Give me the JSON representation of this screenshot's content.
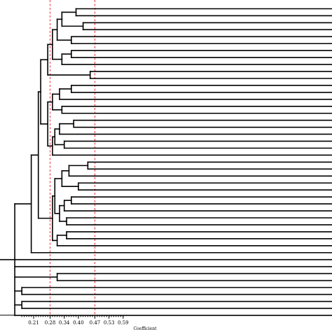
{
  "chart_data": {
    "type": "dendrogram",
    "orientation": "horizontal",
    "xlabel": "Coefficient",
    "xlim": [
      0.15,
      0.6
    ],
    "xticks": [
      0.21,
      0.28,
      0.34,
      0.4,
      0.47,
      0.53,
      0.59
    ],
    "xtick_labels": [
      "0.21",
      "0.28",
      "0.34",
      "0.40",
      "0.47",
      "0.53",
      "0.59"
    ],
    "cutoff_lines": [
      0.28,
      0.47
    ],
    "leaf_count": 45,
    "merge_tree": {
      "h": 0.13,
      "children": [
        {
          "h": 0.2,
          "children": [
            {
              "h": 0.23,
              "children": [
                {
                  "h": 0.24,
                  "children": [
                    {
                      "h": 0.27,
                      "children": [
                        {
                          "h": 0.29,
                          "children": [
                            {
                              "h": 0.31,
                              "children": [
                                {
                                  "h": 0.33,
                                  "children": [
                                    {
                                      "h": 0.39,
                                      "children": [
                                        {
                                          "leaf": 1
                                        },
                                        {
                                          "leaf": 2
                                        }
                                      ]
                                    },
                                    {
                                      "h": 0.42,
                                      "children": [
                                        {
                                          "leaf": 3
                                        },
                                        {
                                          "leaf": 4
                                        }
                                      ]
                                    }
                                  ]
                                },
                                {
                                  "h": 0.37,
                                  "children": [
                                    {
                                      "leaf": 5
                                    },
                                    {
                                      "leaf": 6
                                    }
                                  ]
                                }
                              ]
                            },
                            {
                              "h": 0.33,
                              "children": [
                                {
                                  "h": 0.37,
                                  "children": [
                                    {
                                      "leaf": 7
                                    },
                                    {
                                      "leaf": 8
                                    }
                                  ]
                                },
                                {
                                  "leaf": 9
                                }
                              ]
                            }
                          ]
                        },
                        {
                          "h": 0.45,
                          "children": [
                            {
                              "leaf": 10
                            },
                            {
                              "leaf": 11
                            }
                          ]
                        }
                      ]
                    },
                    {
                      "h": 0.27,
                      "children": [
                        {
                          "h": 0.29,
                          "children": [
                            {
                              "h": 0.32,
                              "children": [
                                {
                                  "h": 0.37,
                                  "children": [
                                    {
                                      "leaf": 12
                                    },
                                    {
                                      "leaf": 13
                                    }
                                  ]
                                },
                                {
                                  "leaf": 14
                                }
                              ]
                            },
                            {
                              "h": 0.33,
                              "children": [
                                {
                                  "leaf": 15
                                },
                                {
                                  "leaf": 16
                                }
                              ]
                            }
                          ]
                        },
                        {
                          "h": 0.29,
                          "children": [
                            {
                              "h": 0.3,
                              "children": [
                                {
                                  "h": 0.32,
                                  "children": [
                                    {
                                      "h": 0.38,
                                      "children": [
                                        {
                                          "leaf": 17
                                        },
                                        {
                                          "leaf": 18
                                        }
                                      ]
                                    },
                                    {
                                      "leaf": 19
                                    }
                                  ]
                                },
                                {
                                  "h": 0.34,
                                  "children": [
                                    {
                                      "leaf": 20
                                    },
                                    {
                                      "leaf": 21
                                    }
                                  ]
                                }
                              ]
                            },
                            {
                              "leaf": 22
                            }
                          ]
                        }
                      ]
                    }
                  ]
                },
                {
                  "h": 0.29,
                  "children": [
                    {
                      "h": 0.3,
                      "children": [
                        {
                          "h": 0.33,
                          "children": [
                            {
                              "h": 0.36,
                              "children": [
                                {
                                  "h": 0.44,
                                  "children": [
                                    {
                                      "leaf": 23
                                    },
                                    {
                                      "leaf": 24
                                    }
                                  ]
                                },
                                {
                                  "leaf": 25
                                }
                              ]
                            },
                            {
                              "h": 0.4,
                              "children": [
                                {
                                  "leaf": 26
                                },
                                {
                                  "leaf": 27
                                }
                              ]
                            }
                          ]
                        },
                        {
                          "h": 0.32,
                          "children": [
                            {
                              "h": 0.34,
                              "children": [
                                {
                                  "h": 0.37,
                                  "children": [
                                    {
                                      "leaf": 28
                                    },
                                    {
                                      "leaf": 29
                                    }
                                  ]
                                },
                                {
                                  "leaf": 30
                                }
                              ]
                            },
                            {
                              "h": 0.35,
                              "children": [
                                {
                                  "leaf": 31
                                },
                                {
                                  "leaf": 32
                                }
                              ]
                            }
                          ]
                        }
                      ]
                    },
                    {
                      "h": 0.31,
                      "children": [
                        {
                          "h": 0.35,
                          "children": [
                            {
                              "leaf": 33
                            },
                            {
                              "leaf": 34
                            }
                          ]
                        },
                        {
                          "leaf": 35
                        }
                      ]
                    }
                  ]
                }
              ]
            },
            {
              "leaf": 36
            }
          ]
        },
        {
          "leaf": 37
        },
        {
          "leaf": 38
        },
        {
          "h": 0.31,
          "children": [
            {
              "leaf": 39
            },
            {
              "leaf": 40
            }
          ]
        },
        {
          "h": 0.16,
          "children": [
            {
              "leaf": 41
            },
            {
              "leaf": 42
            }
          ]
        },
        {
          "h": 0.16,
          "children": [
            {
              "leaf": 43
            },
            {
              "leaf": 44
            }
          ]
        },
        {
          "leaf": 45
        }
      ]
    }
  }
}
